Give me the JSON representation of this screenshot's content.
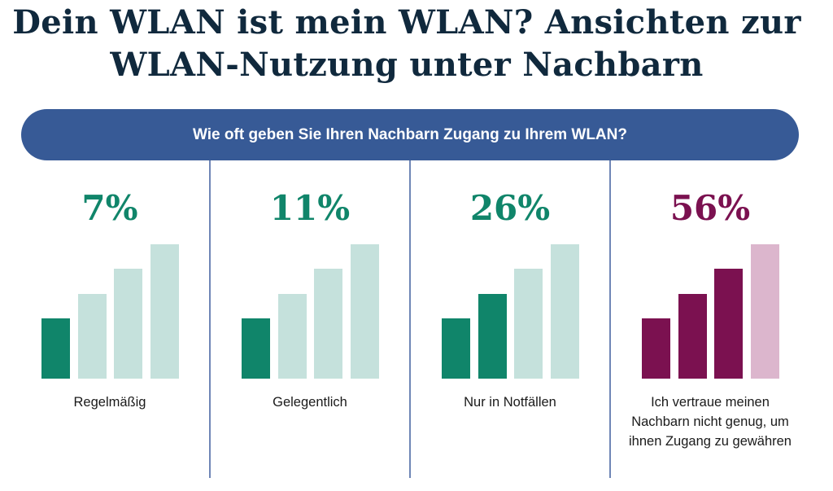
{
  "title": "Dein WLAN ist mein WLAN? Ansichten zur WLAN-Nutzung unter Nachbarn",
  "question": "Wie oft geben Sie Ihren Nachbarn Zugang zu Ihrem WLAN?",
  "colors": {
    "green": "#10856a",
    "green_light": "#c5e1dc",
    "purple": "#7b1150",
    "purple_light": "#dcb6cd",
    "pill": "#375a96",
    "title": "#10293d"
  },
  "chart_data": {
    "type": "bar",
    "title": "Wie oft geben Sie Ihren Nachbarn Zugang zu Ihrem WLAN?",
    "categories": [
      "Regelmäßig",
      "Gelegentlich",
      "Nur in Notfällen",
      "Ich vertraue meinen Nachbarn nicht genug, um ihnen Zugang zu gewähren"
    ],
    "values": [
      7,
      11,
      26,
      56
    ],
    "value_labels": [
      "7%",
      "11%",
      "26%",
      "56%"
    ],
    "signal_bars_filled": [
      1,
      1,
      2,
      3
    ],
    "signal_bars_total": 4,
    "series_colors": [
      "green",
      "green",
      "green",
      "purple"
    ]
  }
}
